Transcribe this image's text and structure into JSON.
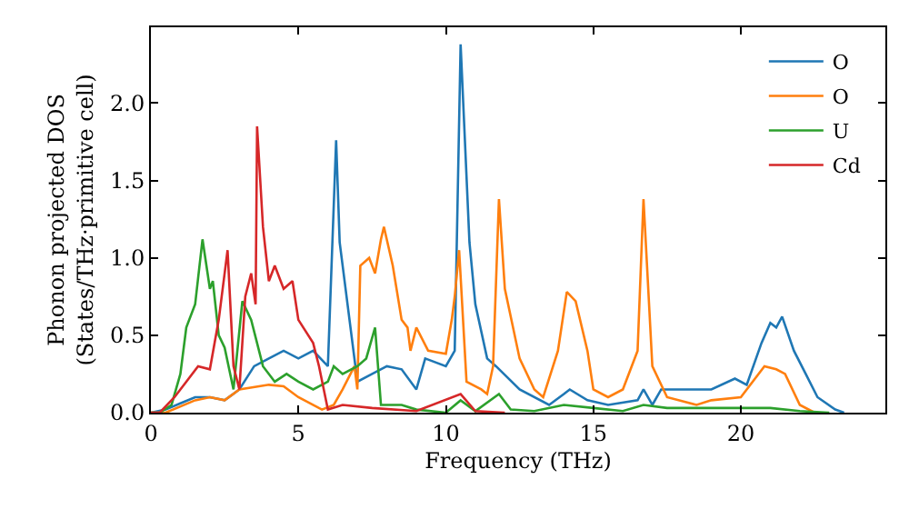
{
  "chart_data": {
    "type": "line",
    "xlabel": "Frequency (THz)",
    "ylabel": "Phonon projected DOS\n(States/THz·primitive cell)",
    "xlim": [
      0,
      24.9
    ],
    "ylim": [
      0,
      2.49
    ],
    "xticks": [
      0,
      5,
      10,
      15,
      20
    ],
    "yticks": [
      {
        "value": 0,
        "label": "0.0"
      },
      {
        "value": 0.5,
        "label": "0.5"
      },
      {
        "value": 1,
        "label": "1.0"
      },
      {
        "value": 1.5,
        "label": "1.5"
      },
      {
        "value": 2,
        "label": "2.0"
      }
    ],
    "legend": "top right",
    "marker": "none",
    "line_style": "solid",
    "series": [
      {
        "name": "O",
        "color": "#1f77b4",
        "x": [
          0,
          0.5,
          1,
          1.5,
          2,
          2.5,
          3,
          3.5,
          4,
          4.5,
          5,
          5.5,
          6,
          6.28,
          6.4,
          6.8,
          7,
          7.5,
          8,
          8.5,
          9,
          9.3,
          10,
          10.3,
          10.5,
          10.8,
          11,
          11.4,
          11.7,
          12.5,
          13.5,
          14,
          14.2,
          14.8,
          15.5,
          16.5,
          16.7,
          17,
          17.3,
          18,
          19,
          19.8,
          20.2,
          20.7,
          21,
          21.2,
          21.4,
          21.8,
          22.2,
          22.6,
          23.2,
          23.5
        ],
        "values": [
          0,
          0.02,
          0.06,
          0.1,
          0.1,
          0.08,
          0.15,
          0.3,
          0.35,
          0.4,
          0.35,
          0.4,
          0.3,
          1.76,
          1.1,
          0.5,
          0.2,
          0.25,
          0.3,
          0.28,
          0.15,
          0.35,
          0.3,
          0.4,
          2.38,
          1.1,
          0.7,
          0.35,
          0.3,
          0.15,
          0.05,
          0.12,
          0.15,
          0.08,
          0.05,
          0.08,
          0.15,
          0.05,
          0.15,
          0.15,
          0.15,
          0.22,
          0.18,
          0.45,
          0.58,
          0.55,
          0.62,
          0.4,
          0.25,
          0.1,
          0.02,
          0
        ]
      },
      {
        "name": "O",
        "color": "#ff7f0e",
        "x": [
          0,
          0.5,
          1.5,
          2,
          2.5,
          3,
          4,
          4.5,
          5,
          5.8,
          6.2,
          6.5,
          6.9,
          7,
          7.1,
          7.4,
          7.6,
          7.8,
          7.9,
          8.2,
          8.5,
          8.7,
          8.8,
          9,
          9.4,
          10,
          10.2,
          10.3,
          10.45,
          10.7,
          11.2,
          11.4,
          11.6,
          11.8,
          12,
          12.5,
          13,
          13.3,
          13.8,
          14.1,
          14.4,
          14.8,
          15,
          15.5,
          16,
          16.5,
          16.7,
          17,
          17.5,
          18.5,
          19,
          20,
          20.8,
          21.2,
          21.5,
          22,
          22.5
        ],
        "values": [
          0,
          0,
          0.08,
          0.1,
          0.08,
          0.15,
          0.18,
          0.17,
          0.1,
          0.02,
          0.05,
          0.15,
          0.3,
          0.15,
          0.95,
          1.0,
          0.9,
          1.12,
          1.2,
          0.95,
          0.6,
          0.55,
          0.4,
          0.55,
          0.4,
          0.38,
          0.6,
          0.75,
          1.05,
          0.2,
          0.15,
          0.12,
          0.3,
          1.38,
          0.8,
          0.35,
          0.15,
          0.1,
          0.4,
          0.78,
          0.72,
          0.4,
          0.15,
          0.1,
          0.15,
          0.4,
          1.38,
          0.3,
          0.1,
          0.05,
          0.08,
          0.1,
          0.3,
          0.28,
          0.25,
          0.05,
          0
        ]
      },
      {
        "name": "U",
        "color": "#2ca02c",
        "x": [
          0,
          0.3,
          0.7,
          1,
          1.2,
          1.5,
          1.75,
          2,
          2.1,
          2.3,
          2.5,
          2.8,
          3.1,
          3.4,
          3.8,
          4.2,
          4.6,
          5,
          5.5,
          6,
          6.2,
          6.5,
          7,
          7.3,
          7.6,
          7.8,
          8.5,
          9,
          10,
          10.5,
          11,
          11.8,
          12.2,
          13,
          14,
          15,
          16,
          16.7,
          17.5,
          21,
          22,
          23
        ],
        "values": [
          0,
          0,
          0.05,
          0.25,
          0.55,
          0.7,
          1.12,
          0.8,
          0.85,
          0.5,
          0.42,
          0.15,
          0.72,
          0.6,
          0.3,
          0.2,
          0.25,
          0.2,
          0.15,
          0.2,
          0.3,
          0.25,
          0.3,
          0.35,
          0.55,
          0.05,
          0.05,
          0.02,
          0,
          0.08,
          0.01,
          0.12,
          0.02,
          0.01,
          0.05,
          0.03,
          0.01,
          0.05,
          0.03,
          0.03,
          0.01,
          0
        ]
      },
      {
        "name": "Cd",
        "color": "#d62728",
        "x": [
          0,
          0.3,
          0.8,
          1.2,
          1.6,
          2,
          2.3,
          2.6,
          2.8,
          3,
          3.2,
          3.4,
          3.55,
          3.6,
          3.8,
          4,
          4.2,
          4.5,
          4.8,
          5,
          5.5,
          5.7,
          6,
          6.5,
          7.5,
          9,
          10.5,
          11,
          12
        ],
        "values": [
          0,
          0,
          0.1,
          0.2,
          0.3,
          0.28,
          0.6,
          1.05,
          0.3,
          0.15,
          0.75,
          0.9,
          0.7,
          1.85,
          1.2,
          0.85,
          0.95,
          0.8,
          0.85,
          0.6,
          0.45,
          0.3,
          0.02,
          0.05,
          0.03,
          0.01,
          0.12,
          0.01,
          0
        ]
      }
    ]
  }
}
